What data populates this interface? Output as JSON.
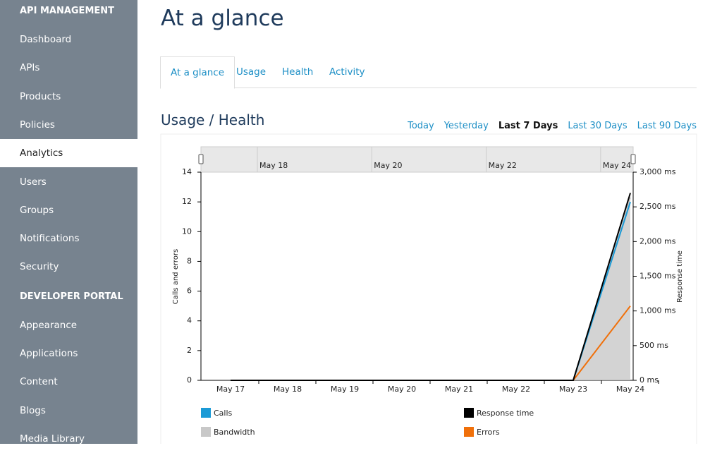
{
  "sidebar": {
    "sections": [
      {
        "title": "API MANAGEMENT",
        "items": [
          "Dashboard",
          "APIs",
          "Products",
          "Policies",
          "Analytics",
          "Users",
          "Groups",
          "Notifications",
          "Security"
        ]
      },
      {
        "title": "DEVELOPER PORTAL",
        "items": [
          "Appearance",
          "Applications",
          "Content",
          "Blogs",
          "Media Library"
        ]
      }
    ]
  },
  "header": {
    "title": "At a glance"
  },
  "tabs": [
    "At a glance",
    "Usage",
    "Health",
    "Activity"
  ],
  "section": {
    "title": "Usage / Health",
    "ranges": [
      "Today",
      "Yesterday",
      "Last 7 Days",
      "Last 30 Days",
      "Last 90 Days"
    ]
  },
  "chart_data": {
    "type": "line",
    "navigator_labels": [
      "May 18",
      "May 20",
      "May 22",
      "May 24"
    ],
    "y_label": "Calls and errors",
    "y2_label": "Response time",
    "categories": [
      "May 17",
      "May 18",
      "May 19",
      "May 20",
      "May 21",
      "May 22",
      "May 23",
      "May 24"
    ],
    "ylim": [
      0,
      14
    ],
    "yticks": [
      0,
      2,
      4,
      6,
      8,
      10,
      12,
      14
    ],
    "y2lim": [
      0,
      3000
    ],
    "y2ticks": [
      {
        "value": 0,
        "label": "0 ms"
      },
      {
        "value": 500,
        "label": "500 ms"
      },
      {
        "value": 1000,
        "label": "1,000 ms"
      },
      {
        "value": 1500,
        "label": "1,500 ms"
      },
      {
        "value": 2000,
        "label": "2,000 ms"
      },
      {
        "value": 2500,
        "label": "2,500 ms"
      },
      {
        "value": 3000,
        "label": "3,000 ms"
      }
    ],
    "series": [
      {
        "name": "Bandwidth",
        "color": "#c8c8c8",
        "values": [
          0,
          0,
          0,
          0,
          0,
          0,
          0,
          12.3
        ]
      },
      {
        "name": "Calls",
        "color": "#1b9ad6",
        "values": [
          0,
          0,
          0,
          0,
          0,
          0,
          0,
          12
        ]
      },
      {
        "name": "Errors",
        "color": "#f0700a",
        "values": [
          0,
          0,
          0,
          0,
          0,
          0,
          0,
          5
        ]
      },
      {
        "name": "Response time",
        "color": "#000000",
        "axis": "y2",
        "values": [
          0,
          0,
          0,
          0,
          0,
          0,
          0,
          2700
        ]
      }
    ]
  }
}
